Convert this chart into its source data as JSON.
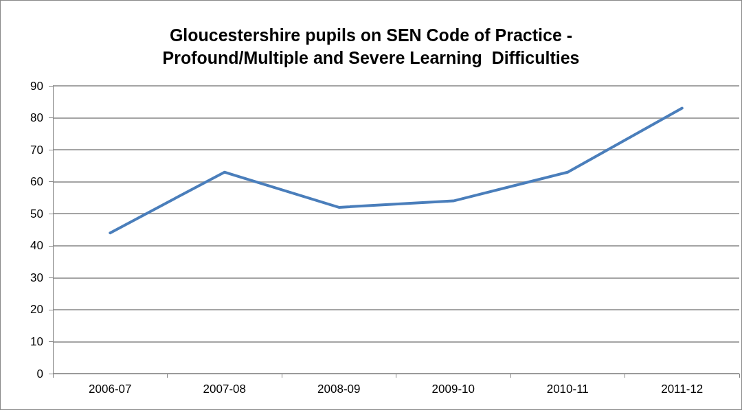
{
  "chart_data": {
    "type": "line",
    "title": "Gloucestershire pupils on SEN Code of Practice -\nProfound/Multiple and Severe Learning  Difficulties",
    "categories": [
      "2006-07",
      "2007-08",
      "2008-09",
      "2009-10",
      "2010-11",
      "2011-12"
    ],
    "series": [
      {
        "color": "#4a7ebb",
        "values": [
          44,
          63,
          52,
          54,
          63,
          83
        ]
      }
    ],
    "ylim": [
      0,
      90
    ],
    "yticks": [
      0,
      10,
      20,
      30,
      40,
      50,
      60,
      70,
      80,
      90
    ],
    "grid": "y",
    "marker": "none",
    "line_style": "solid"
  }
}
